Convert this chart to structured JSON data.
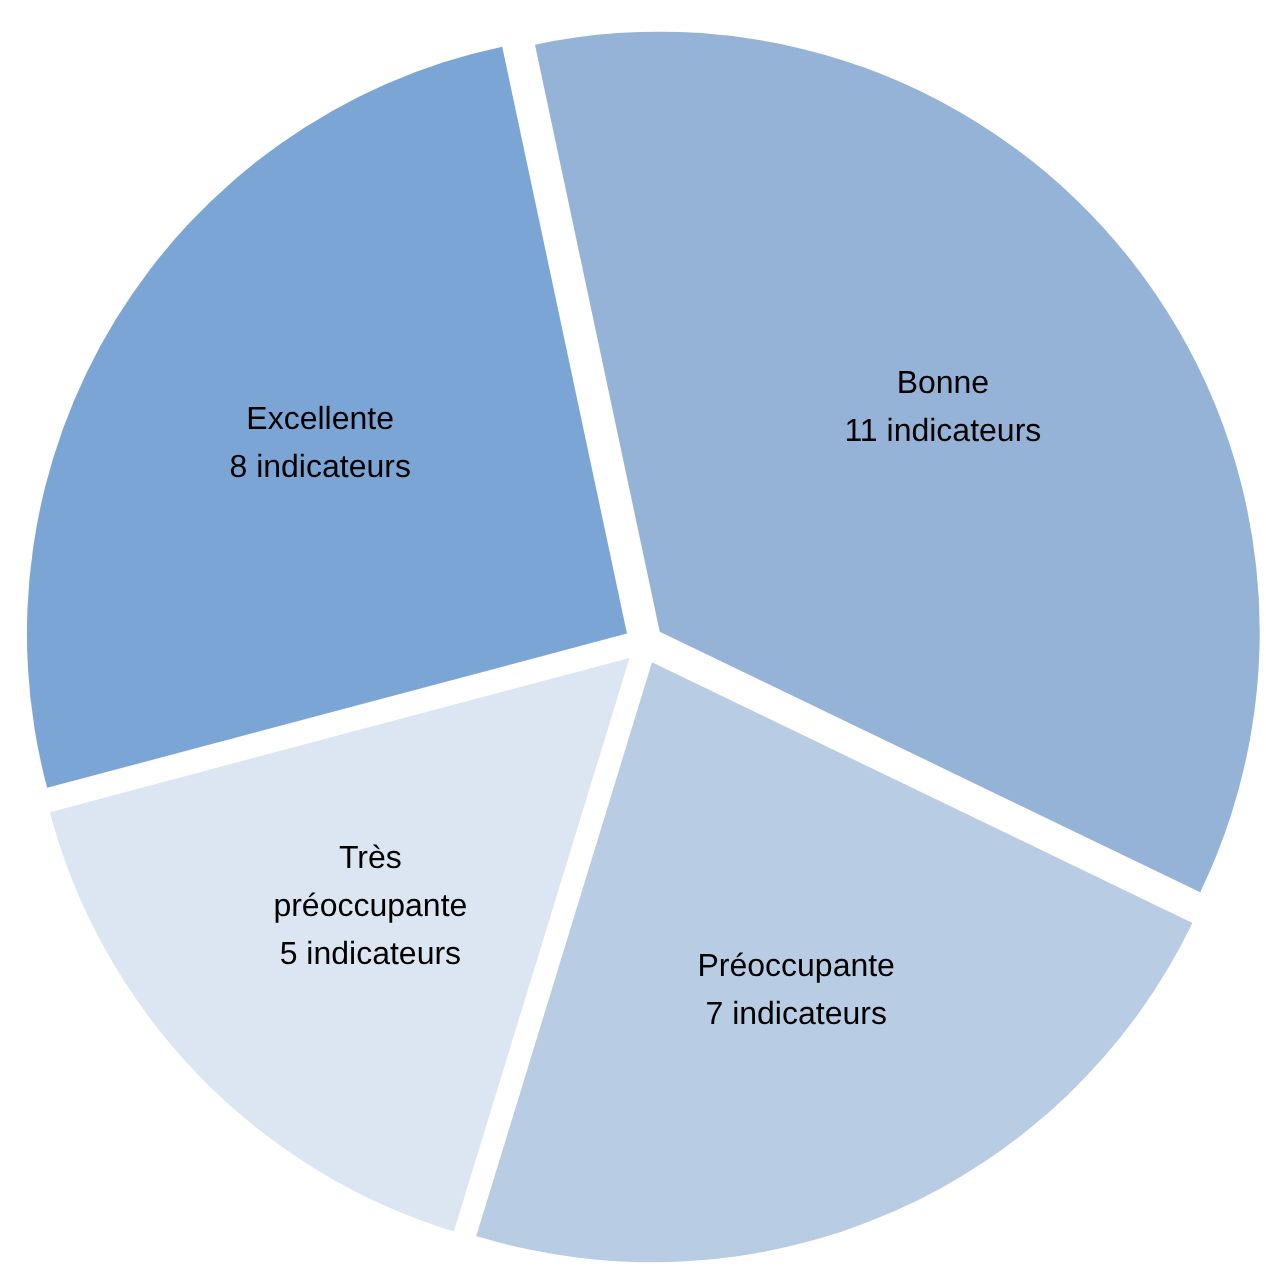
{
  "chart_data": {
    "type": "pie",
    "categories": [
      "Bonne",
      "Préoccupante",
      "Très préoccupante",
      "Excellente"
    ],
    "values": [
      11,
      7,
      5,
      8
    ],
    "value_labels": [
      "11 indicateurs",
      "7 indicateurs",
      "5 indicateurs",
      "8 indicateurs"
    ],
    "colors": [
      "#95b3d7",
      "#b8cce4",
      "#dce6f2",
      "#7ba5d5"
    ]
  }
}
